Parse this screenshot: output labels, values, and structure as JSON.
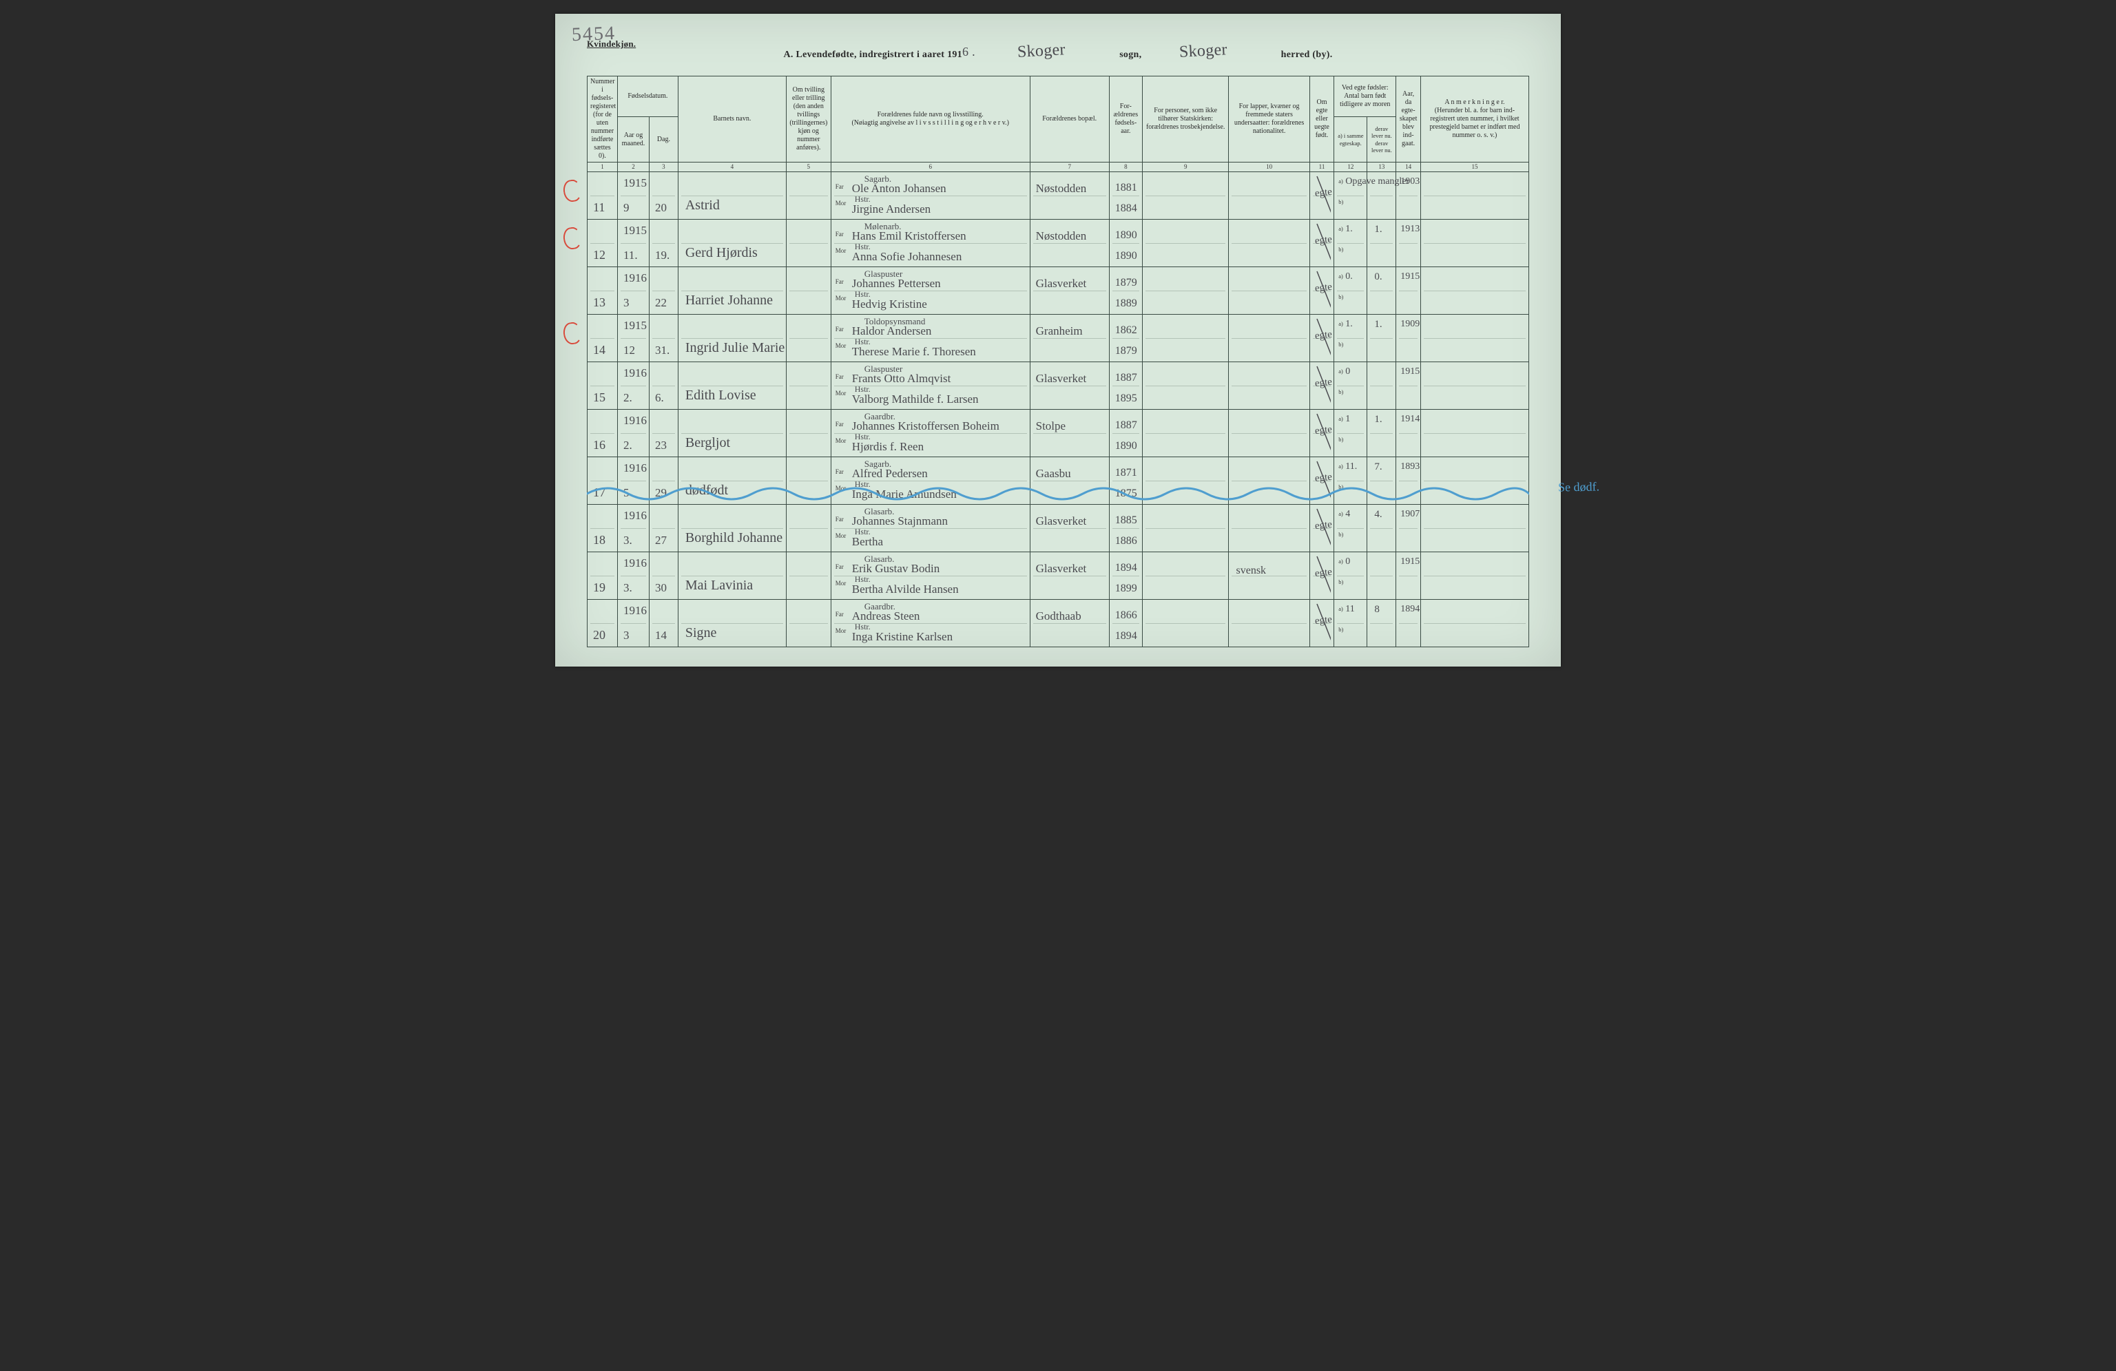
{
  "meta": {
    "gender_heading": "Kvindekjøn.",
    "sheet_scribble": "5454",
    "title_prefix": "A.  Levendefødte, indregistrert i aaret 191",
    "title_year_suffix": "6 .",
    "sogn_label": "sogn,",
    "herred_label": "herred (by).",
    "sogn_value": "Skoger",
    "herred_value": "Skoger",
    "side_note_right": "Se dødf."
  },
  "columns": {
    "c1": "Nummer i fødsels-registeret (for de uten nummer indførte sættes 0).",
    "c2_group": "Fødselsdatum.",
    "c2a": "Aar og maaned.",
    "c2b": "Dag.",
    "c4": "Barnets navn.",
    "c5": "Om tvilling eller trilling (den anden tvillings (trillingernes) kjøn og nummer anføres).",
    "c6": "Forældrenes fulde navn og livsstilling.\n(Nøiagtig angivelse av  l i v s s t i l l i n g  og  e r h v e r v.)",
    "c7": "Forældrenes bopæl.",
    "c8": "For-ældrenes fødsels-aar.",
    "c9": "For personer, som ikke tilhører Statskirken: forældrenes trosbekjendelse.",
    "c10": "For lapper, kvæner og fremmede staters undersaatter: forældrenes nationalitet.",
    "c11": "Om egte eller uegte født.",
    "c12_group": "Ved egte fødsler: Antal barn født tidligere av moren",
    "c12a": "a) i samme egteskap.",
    "c12b": "b) i tidligere egteskap.",
    "c13": "derav lever nu.\nderav lever nu.",
    "c14": "Aar, da egte-skapet blev ind-gaat.",
    "c15": "A n m e r k n i n g e r.\n(Herunder bl. a. for barn ind-registrert uten nummer, i hvilket prestegjeld barnet er indført med nummer o. s. v.)",
    "far_label": "Far",
    "mor_label": "Mor",
    "ab_a": "a)",
    "ab_b": "b)"
  },
  "colnums": [
    "1",
    "2",
    "3",
    "4",
    "5",
    "6",
    "7",
    "8",
    "9",
    "10",
    "11",
    "12",
    "13",
    "14",
    "15"
  ],
  "rows": [
    {
      "seq": "11",
      "red_circle": true,
      "year": "1915",
      "month": "9",
      "day": "20",
      "child": "Astrid",
      "far_occ": "Sagarb.",
      "far": "Ole Anton Johansen",
      "mor_occ": "Hstr.",
      "mor": "Jirgine Andersen",
      "bopael": "Nøstodden",
      "far_year": "1881",
      "mor_year": "1884",
      "c9": "",
      "c10": "",
      "egte": "egte",
      "c12a": "Opgave mangler",
      "c13": "",
      "c14": "1903",
      "anm": ""
    },
    {
      "seq": "12",
      "red_circle": true,
      "year": "1915",
      "month": "11.",
      "day": "19.",
      "child": "Gerd Hjørdis",
      "far_occ": "Mølenarb.",
      "far": "Hans Emil Kristoffersen",
      "mor_occ": "Hstr.",
      "mor": "Anna Sofie Johannesen",
      "bopael": "Nøstodden",
      "far_year": "1890",
      "mor_year": "1890",
      "c9": "",
      "c10": "",
      "egte": "egte",
      "c12a": "1.",
      "c13": "1.",
      "c14": "1913",
      "anm": ""
    },
    {
      "seq": "13",
      "red_circle": false,
      "year": "1916",
      "month": "3",
      "day": "22",
      "child": "Harriet Johanne",
      "far_occ": "Glaspuster",
      "far": "Johannes Pettersen",
      "mor_occ": "Hstr.",
      "mor": "Hedvig Kristine",
      "bopael": "Glasverket",
      "far_year": "1879",
      "mor_year": "1889",
      "c9": "",
      "c10": "",
      "egte": "egte",
      "c12a": "0.",
      "c13": "0.",
      "c14": "1915",
      "anm": ""
    },
    {
      "seq": "14",
      "red_circle": true,
      "year": "1915",
      "month": "12",
      "day": "31.",
      "child": "Ingrid Julie Marie",
      "far_occ": "Toldopsynsmand",
      "far": "Haldor Andersen",
      "mor_occ": "Hstr.",
      "mor": "Therese Marie f. Thoresen",
      "bopael": "Granheim",
      "far_year": "1862",
      "mor_year": "1879",
      "c9": "",
      "c10": "",
      "egte": "egte",
      "c12a": "1.",
      "c13": "1.",
      "c14": "1909",
      "anm": ""
    },
    {
      "seq": "15",
      "red_circle": false,
      "year": "1916",
      "month": "2.",
      "day": "6.",
      "child": "Edith Lovise",
      "far_occ": "Glaspuster",
      "far": "Frants Otto Almqvist",
      "mor_occ": "Hstr.",
      "mor": "Valborg Mathilde f. Larsen",
      "bopael": "Glasverket",
      "far_year": "1887",
      "mor_year": "1895",
      "c9": "",
      "c10": "",
      "egte": "egte",
      "c12a": "0",
      "c13": "",
      "c14": "1915",
      "anm": ""
    },
    {
      "seq": "16",
      "red_circle": false,
      "year": "1916",
      "month": "2.",
      "day": "23",
      "child": "Bergljot",
      "far_occ": "Gaardbr.",
      "far": "Johannes Kristoffersen Boheim",
      "mor_occ": "Hstr.",
      "mor": "Hjørdis f. Reen",
      "bopael": "Stolpe",
      "far_year": "1887",
      "mor_year": "1890",
      "c9": "",
      "c10": "",
      "egte": "egte",
      "c12a": "1",
      "c13": "1.",
      "c14": "1914",
      "anm": ""
    },
    {
      "seq": "17",
      "red_circle": false,
      "wave": true,
      "year": "1916",
      "month": "5",
      "day": "29",
      "child": "dødfødt",
      "far_occ": "Sagarb.",
      "far": "Alfred Pedersen",
      "mor_occ": "Hstr.",
      "mor": "Inga Marie Amundsen",
      "bopael": "Gaasbu",
      "far_year": "1871",
      "mor_year": "1875",
      "c9": "",
      "c10": "",
      "egte": "egte",
      "c12a": "11.",
      "c13": "7.",
      "c14": "1893",
      "anm": ""
    },
    {
      "seq": "18",
      "red_circle": false,
      "year": "1916",
      "month": "3.",
      "day": "27",
      "child": "Borghild Johanne",
      "far_occ": "Glasarb.",
      "far": "Johannes Stajnmann",
      "mor_occ": "Hstr.",
      "mor": "Bertha",
      "bopael": "Glasverket",
      "far_year": "1885",
      "mor_year": "1886",
      "c9": "",
      "c10": "",
      "egte": "egte",
      "c12a": "4",
      "c13": "4.",
      "c14": "1907",
      "anm": ""
    },
    {
      "seq": "19",
      "red_circle": false,
      "year": "1916",
      "month": "3.",
      "day": "30",
      "child": "Mai Lavinia",
      "far_occ": "Glasarb.",
      "far": "Erik Gustav Bodin",
      "mor_occ": "Hstr.",
      "mor": "Bertha Alvilde Hansen",
      "bopael": "Glasverket",
      "far_year": "1894",
      "mor_year": "1899",
      "c9": "",
      "c10": "svensk",
      "egte": "egte",
      "c12a": "0",
      "c13": "",
      "c14": "1915",
      "anm": ""
    },
    {
      "seq": "20",
      "red_circle": false,
      "year": "1916",
      "month": "3",
      "day": "14",
      "child": "Signe",
      "far_occ": "Gaardbr.",
      "far": "Andreas Steen",
      "mor_occ": "Hstr.",
      "mor": "Inga Kristine Karlsen",
      "bopael": "Godthaab",
      "far_year": "1866",
      "mor_year": "1894",
      "c9": "",
      "c10": "",
      "egte": "egte",
      "c12a": "11",
      "c13": "8",
      "c14": "1894",
      "anm": ""
    }
  ]
}
